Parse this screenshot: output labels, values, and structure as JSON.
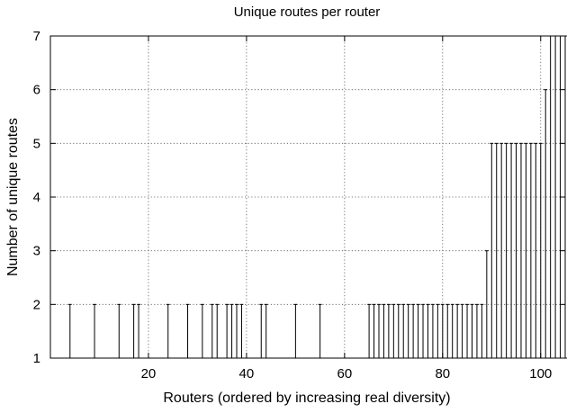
{
  "chart_data": {
    "type": "range",
    "title": "Unique routes per router",
    "xlabel": "Routers (ordered by increasing real diversity)",
    "ylabel": "Number of unique routes",
    "xlim": [
      0,
      105
    ],
    "ylim": [
      1,
      7
    ],
    "xticks": [
      20,
      40,
      60,
      80,
      100
    ],
    "yticks": [
      1,
      2,
      3,
      4,
      5,
      6,
      7
    ],
    "grid": true,
    "low": 1,
    "series": [
      {
        "x": [
          1,
          2,
          3,
          4,
          5,
          6,
          7,
          8,
          9,
          10,
          11,
          12,
          13,
          14,
          15,
          16,
          17,
          18,
          19,
          20,
          21,
          22,
          23,
          24,
          25,
          26,
          27,
          28,
          29,
          30,
          31,
          32,
          33,
          34,
          35,
          36,
          37,
          38,
          39,
          40,
          41,
          42,
          43,
          44,
          45,
          46,
          47,
          48,
          49,
          50,
          51,
          52,
          53,
          54,
          55,
          56,
          57,
          58,
          59,
          60,
          61,
          62,
          63,
          64,
          65,
          66,
          67,
          68,
          69,
          70,
          71,
          72,
          73,
          74,
          75,
          76,
          77,
          78,
          79,
          80,
          81,
          82,
          83,
          84,
          85,
          86,
          87,
          88,
          89,
          90,
          91,
          92,
          93,
          94,
          95,
          96,
          97,
          98,
          99,
          100,
          101,
          102,
          103,
          104,
          105
        ],
        "high": [
          1,
          1,
          1,
          2,
          1,
          1,
          1,
          1,
          2,
          1,
          1,
          1,
          1,
          2,
          1,
          1,
          2,
          2,
          1,
          1,
          1,
          1,
          1,
          2,
          1,
          1,
          1,
          2,
          1,
          1,
          2,
          1,
          2,
          2,
          1,
          2,
          2,
          2,
          2,
          1,
          1,
          1,
          2,
          2,
          1,
          1,
          1,
          1,
          1,
          2,
          1,
          1,
          1,
          1,
          2,
          1,
          1,
          1,
          1,
          1,
          1,
          1,
          1,
          1,
          2,
          2,
          2,
          2,
          2,
          2,
          2,
          2,
          2,
          2,
          2,
          2,
          2,
          2,
          2,
          2,
          2,
          2,
          2,
          2,
          2,
          2,
          2,
          2,
          3,
          5,
          5,
          5,
          5,
          5,
          5,
          5,
          5,
          5,
          5,
          5,
          6,
          7,
          7,
          7,
          7
        ]
      }
    ]
  }
}
